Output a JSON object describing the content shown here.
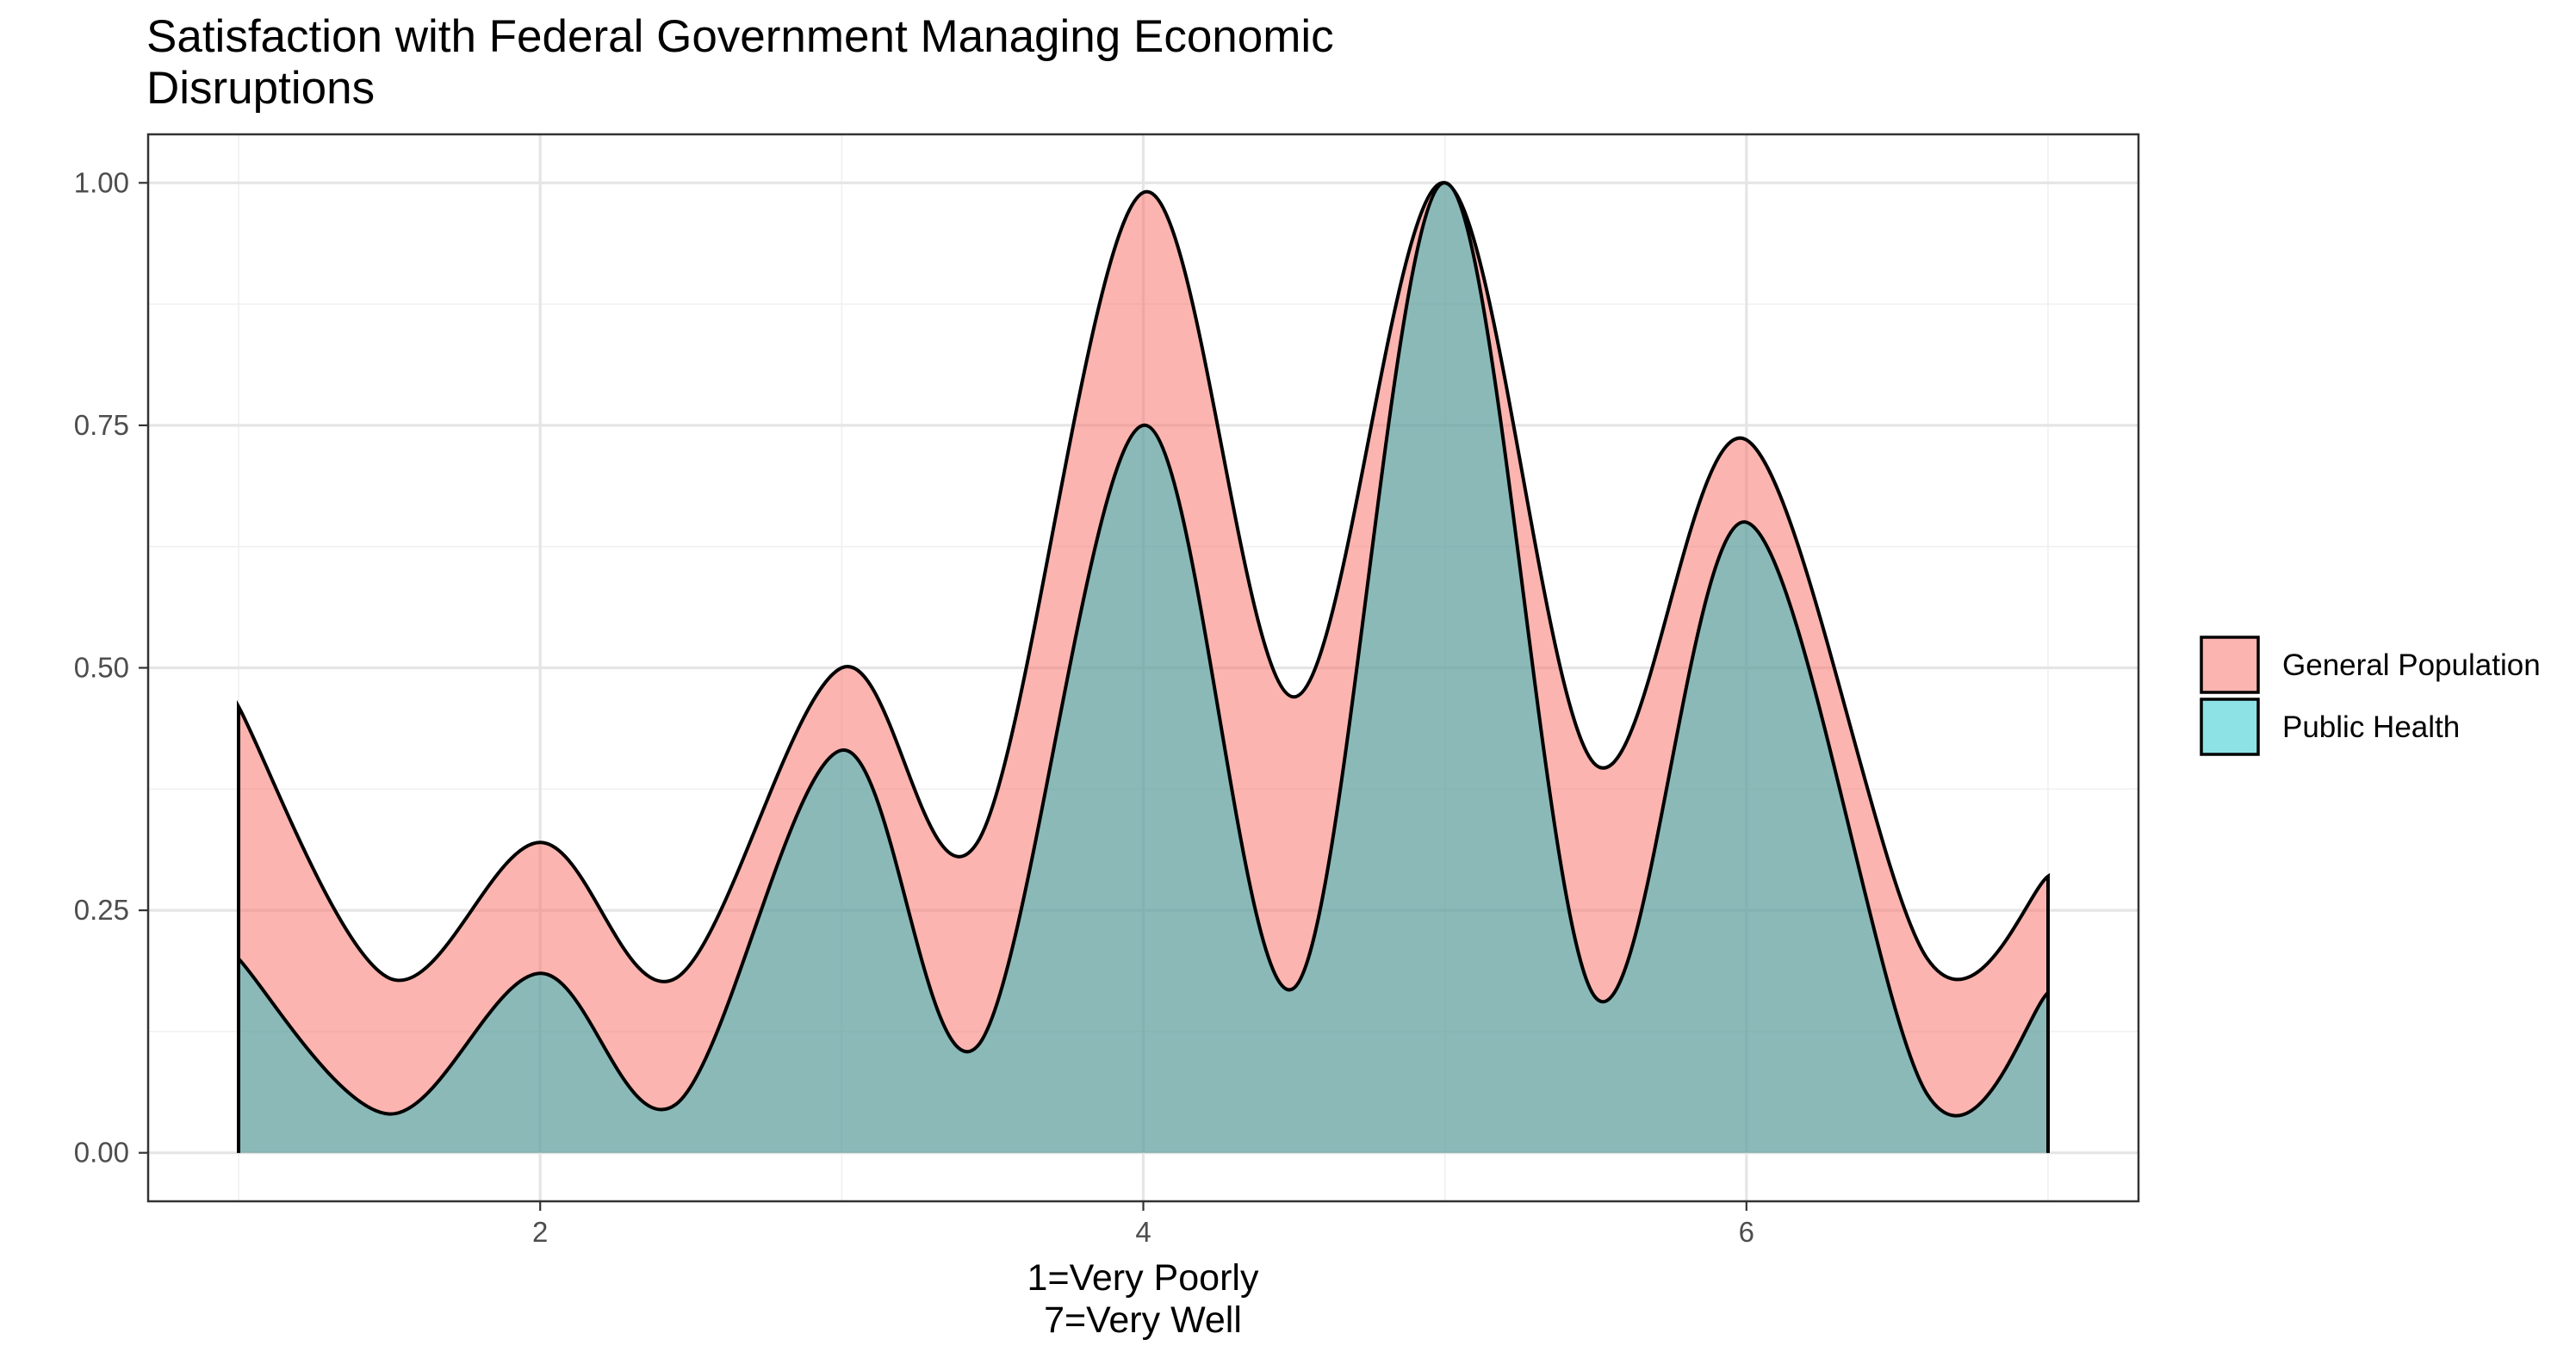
{
  "chart_data": {
    "type": "area",
    "title_lines": [
      "Satisfaction with Federal Government Managing Economic",
      "Disruptions"
    ],
    "xlabel_lines": [
      "1=Very Poorly",
      "7=Very Well"
    ],
    "ylabel": "",
    "xlim": [
      0.7,
      7.3
    ],
    "ylim": [
      -0.05,
      1.05
    ],
    "x_ticks": [
      2,
      4,
      6
    ],
    "x_tick_labels": [
      "2",
      "4",
      "6"
    ],
    "y_ticks": [
      0,
      0.25,
      0.5,
      0.75,
      1.0
    ],
    "y_tick_labels": [
      "0.00",
      "0.25",
      "0.50",
      "0.75",
      "1.00"
    ],
    "grid": true,
    "legend": {
      "placement": "right",
      "title": ""
    },
    "series": [
      {
        "name": "General Population",
        "color": "#F8766D",
        "x": [
          1.0,
          1.5,
          2.0,
          2.45,
          3.0,
          3.45,
          4.0,
          4.5,
          5.0,
          5.5,
          6.0,
          6.6,
          7.0
        ],
        "values": [
          0.46,
          0.18,
          0.32,
          0.18,
          0.5,
          0.32,
          0.99,
          0.47,
          1.0,
          0.4,
          0.735,
          0.2,
          0.285
        ]
      },
      {
        "name": "Public Health",
        "color": "#00BFC4",
        "x": [
          1.0,
          1.5,
          2.0,
          2.45,
          3.0,
          3.45,
          4.0,
          4.5,
          5.0,
          5.5,
          6.0,
          6.6,
          7.0
        ],
        "values": [
          0.2,
          0.04,
          0.185,
          0.05,
          0.415,
          0.11,
          0.75,
          0.17,
          1.0,
          0.16,
          0.65,
          0.06,
          0.165
        ]
      }
    ]
  }
}
